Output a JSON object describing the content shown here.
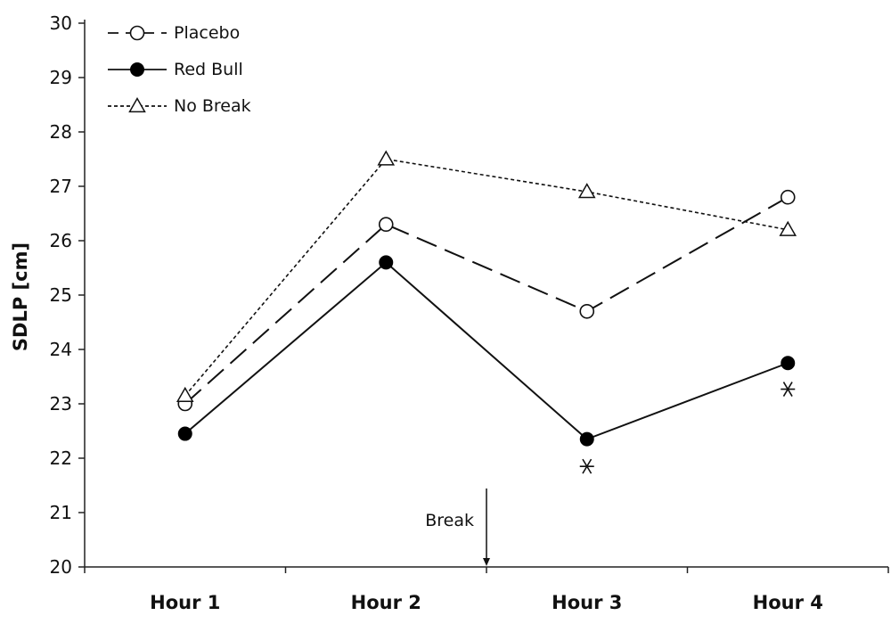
{
  "chart_data": {
    "type": "line",
    "title": "",
    "xlabel": "",
    "ylabel": "SDLP [cm]",
    "ylim": [
      20,
      30
    ],
    "yticks": [
      20,
      21,
      22,
      23,
      24,
      25,
      26,
      27,
      28,
      29,
      30
    ],
    "categories": [
      "Hour 1",
      "Hour 2",
      "Hour 3",
      "Hour 4"
    ],
    "grid": false,
    "legend_position": "top-left",
    "series": [
      {
        "name": "Placebo",
        "values": [
          23.0,
          26.3,
          24.7,
          26.8
        ],
        "line_style": "long-dash",
        "marker": "open-circle"
      },
      {
        "name": "Red Bull",
        "values": [
          22.45,
          25.6,
          22.35,
          23.75
        ],
        "line_style": "solid",
        "marker": "filled-circle"
      },
      {
        "name": "No Break",
        "values": [
          23.15,
          27.5,
          26.9,
          26.2
        ],
        "line_style": "dotted",
        "marker": "open-triangle"
      }
    ],
    "significance_markers": [
      {
        "category": "Hour 3",
        "y": 21.85,
        "symbol": "asterisk"
      },
      {
        "category": "Hour 4",
        "y": 23.27,
        "symbol": "asterisk"
      }
    ],
    "annotations": [
      {
        "text": "Break",
        "between": [
          "Hour 2",
          "Hour 3"
        ],
        "type": "arrow-down"
      }
    ]
  }
}
